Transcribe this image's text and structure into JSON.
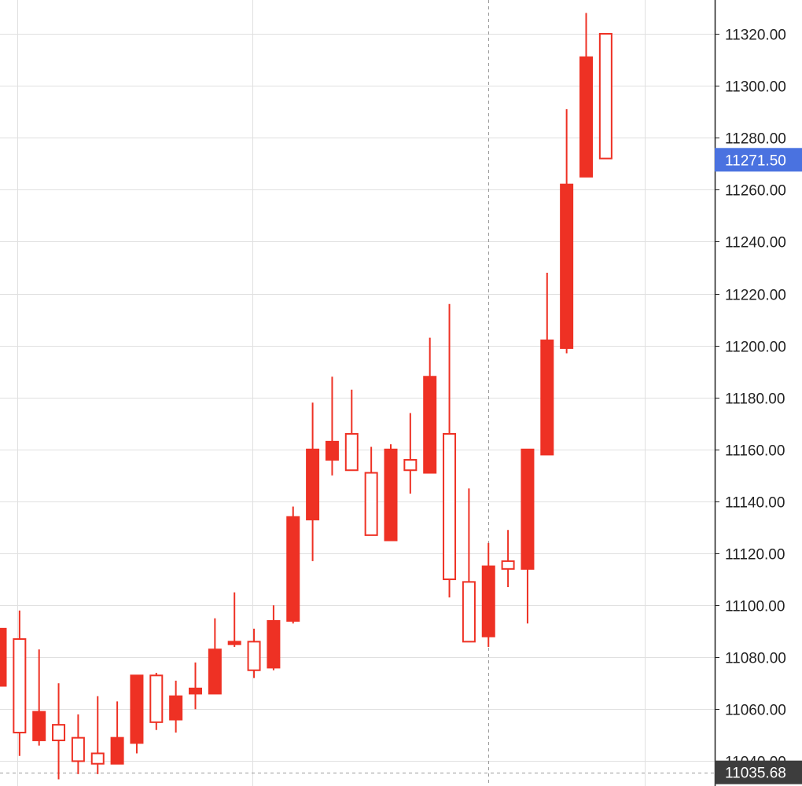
{
  "chart_data": {
    "type": "candlestick",
    "y_tick_labels": [
      "11040.00",
      "11060.00",
      "11080.00",
      "11100.00",
      "11120.00",
      "11140.00",
      "11160.00",
      "11180.00",
      "11200.00",
      "11220.00",
      "11240.00",
      "11260.00",
      "11280.00",
      "11300.00",
      "11320.00"
    ],
    "y_ticks": [
      11040,
      11060,
      11080,
      11100,
      11120,
      11140,
      11160,
      11180,
      11200,
      11220,
      11240,
      11260,
      11280,
      11300,
      11320
    ],
    "ylim": [
      11030,
      11339
    ],
    "grid": true,
    "crosshair_price_label": "11035.68",
    "crosshair_price": 11035.68,
    "last_price_label": "11271.50",
    "last_price": 11271.5,
    "colors": {
      "candle": "#ee3124",
      "grid": "#e0e0e0",
      "axis": "#222222",
      "last_price_badge": "#4a72e0",
      "crosshair_badge": "#3d3d3d"
    },
    "candles": [
      {
        "open": 11091,
        "high": 11091,
        "low": 11069,
        "close": 11069
      },
      {
        "open": 11051,
        "high": 11098,
        "low": 11042,
        "close": 11087
      },
      {
        "open": 11059,
        "high": 11083,
        "low": 11046,
        "close": 11048
      },
      {
        "open": 11048,
        "high": 11070,
        "low": 11033,
        "close": 11054
      },
      {
        "open": 11040,
        "high": 11058,
        "low": 11035,
        "close": 11049
      },
      {
        "open": 11039,
        "high": 11065,
        "low": 11035,
        "close": 11043
      },
      {
        "open": 11049,
        "high": 11063,
        "low": 11039,
        "close": 11039
      },
      {
        "open": 11073,
        "high": 11073,
        "low": 11043,
        "close": 11047
      },
      {
        "open": 11055,
        "high": 11074,
        "low": 11052,
        "close": 11073
      },
      {
        "open": 11065,
        "high": 11071,
        "low": 11051,
        "close": 11056
      },
      {
        "open": 11068,
        "high": 11078,
        "low": 11060,
        "close": 11066
      },
      {
        "open": 11083,
        "high": 11095,
        "low": 11066,
        "close": 11066
      },
      {
        "open": 11086,
        "high": 11105,
        "low": 11084,
        "close": 11085
      },
      {
        "open": 11075,
        "high": 11091,
        "low": 11072,
        "close": 11086
      },
      {
        "open": 11094,
        "high": 11100,
        "low": 11075,
        "close": 11076
      },
      {
        "open": 11134,
        "high": 11138,
        "low": 11093,
        "close": 11094
      },
      {
        "open": 11160,
        "high": 11178,
        "low": 11117,
        "close": 11133
      },
      {
        "open": 11163,
        "high": 11188,
        "low": 11150,
        "close": 11156
      },
      {
        "open": 11152,
        "high": 11183,
        "low": 11152,
        "close": 11166
      },
      {
        "open": 11127,
        "high": 11161,
        "low": 11127,
        "close": 11151
      },
      {
        "open": 11160,
        "high": 11162,
        "low": 11125,
        "close": 11125
      },
      {
        "open": 11152,
        "high": 11174,
        "low": 11143,
        "close": 11156
      },
      {
        "open": 11188,
        "high": 11203,
        "low": 11151,
        "close": 11151
      },
      {
        "open": 11110,
        "high": 11216,
        "low": 11103,
        "close": 11166
      },
      {
        "open": 11086,
        "high": 11145,
        "low": 11086,
        "close": 11109
      },
      {
        "open": 11115,
        "high": 11124,
        "low": 11084,
        "close": 11088
      },
      {
        "open": 11114,
        "high": 11129,
        "low": 11107,
        "close": 11117
      },
      {
        "open": 11160,
        "high": 11160,
        "low": 11093,
        "close": 11114
      },
      {
        "open": 11202,
        "high": 11228,
        "low": 11158,
        "close": 11158
      },
      {
        "open": 11262,
        "high": 11291,
        "low": 11197,
        "close": 11199
      },
      {
        "open": 11311,
        "high": 11328,
        "low": 11265,
        "close": 11265
      },
      {
        "open": 11272,
        "high": 11320,
        "low": 11272,
        "close": 11320
      }
    ]
  }
}
